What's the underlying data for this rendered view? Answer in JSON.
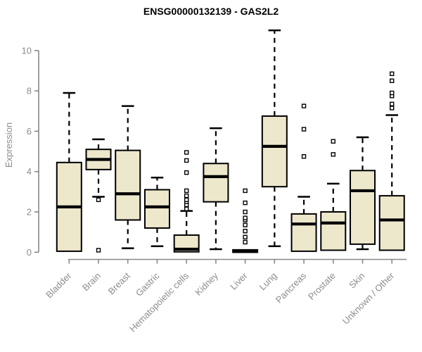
{
  "title": "ENSG00000132139 - GAS2L2",
  "colors": {
    "background": "#ffffff",
    "box_fill": "#ede7cc",
    "box_border": "#000000",
    "median": "#000000",
    "whisker": "#000000",
    "outlier_fill": "#ffffff",
    "axis_line": "#888888",
    "axis_text": "#8c8c8c",
    "title_text": "#000000"
  },
  "chart_data": {
    "type": "boxplot",
    "title": "ENSG00000132139 - GAS2L2",
    "xlabel": "",
    "ylabel": "Expression",
    "ylim": [
      0,
      11.2
    ],
    "y_ticks": [
      0,
      2,
      4,
      6,
      8,
      10
    ],
    "grid": false,
    "legend": "none",
    "x_label_rotation_deg": 45,
    "categories": [
      "Bladder",
      "Brain",
      "Breast",
      "Gastric",
      "Hematopoietic cells",
      "Kidney",
      "Liver",
      "Lung",
      "Pancreas",
      "Prostate",
      "Skin",
      "Unknown / Other"
    ],
    "boxes": [
      {
        "category": "Bladder",
        "low": 0.05,
        "q1": 0.05,
        "median": 2.25,
        "q3": 4.45,
        "high": 7.9,
        "outliers": []
      },
      {
        "category": "Brain",
        "low": 2.75,
        "q1": 4.1,
        "median": 4.6,
        "q3": 5.1,
        "high": 5.6,
        "outliers": [
          2.6,
          0.1
        ]
      },
      {
        "category": "Breast",
        "low": 0.2,
        "q1": 1.6,
        "median": 2.9,
        "q3": 5.05,
        "high": 7.25,
        "outliers": []
      },
      {
        "category": "Gastric",
        "low": 0.3,
        "q1": 1.2,
        "median": 2.25,
        "q3": 3.1,
        "high": 3.7,
        "outliers": []
      },
      {
        "category": "Hematopoietic cells",
        "low": 0.02,
        "q1": 0.02,
        "median": 0.15,
        "q3": 0.85,
        "high": 2.05,
        "outliers": [
          2.15,
          2.35,
          2.5,
          2.6,
          2.8,
          3.05,
          3.95,
          4.55,
          4.95
        ]
      },
      {
        "category": "Kidney",
        "low": 0.15,
        "q1": 2.5,
        "median": 3.75,
        "q3": 4.4,
        "high": 6.15,
        "outliers": []
      },
      {
        "category": "Liver",
        "low": 0.0,
        "q1": 0.0,
        "median": 0.04,
        "q3": 0.12,
        "high": 0.12,
        "outliers": [
          0.5,
          0.75,
          1.05,
          1.35,
          1.6,
          1.7,
          2.0,
          2.45,
          3.05
        ]
      },
      {
        "category": "Lung",
        "low": 0.3,
        "q1": 3.25,
        "median": 5.25,
        "q3": 6.75,
        "high": 11.0,
        "outliers": []
      },
      {
        "category": "Pancreas",
        "low": 0.05,
        "q1": 0.05,
        "median": 1.4,
        "q3": 1.9,
        "high": 2.75,
        "outliers": [
          4.75,
          6.1,
          7.25
        ]
      },
      {
        "category": "Prostate",
        "low": 0.1,
        "q1": 0.1,
        "median": 1.45,
        "q3": 2.0,
        "high": 3.4,
        "outliers": [
          4.85,
          5.5
        ]
      },
      {
        "category": "Skin",
        "low": 0.15,
        "q1": 0.4,
        "median": 3.05,
        "q3": 4.05,
        "high": 5.7,
        "outliers": []
      },
      {
        "category": "Unknown / Other",
        "low": 0.1,
        "q1": 0.1,
        "median": 1.6,
        "q3": 2.8,
        "high": 6.8,
        "outliers": [
          7.15,
          7.35,
          7.75,
          7.9,
          8.5,
          8.85
        ]
      }
    ]
  }
}
